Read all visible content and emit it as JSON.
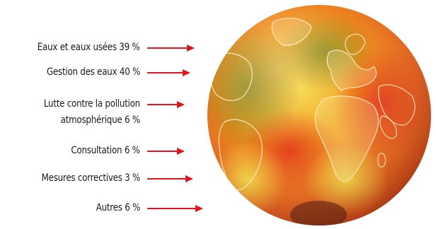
{
  "items": [
    {
      "label": "Eaux et eaux usées 39 %"
    },
    {
      "label": "Gestion des eaux 40 %"
    },
    {
      "label_line1": "Lutte contre la pollution",
      "label_line2": "atmosphérique 6 %"
    },
    {
      "label": "Consultation 6 %"
    },
    {
      "label": "Mesures correctives 3 %"
    },
    {
      "label": "Autres 6 %"
    }
  ],
  "colors": {
    "arrow": "#e0141e",
    "text": "#1a1a1a"
  },
  "globe": {
    "icon": "earth-globe-icon"
  }
}
